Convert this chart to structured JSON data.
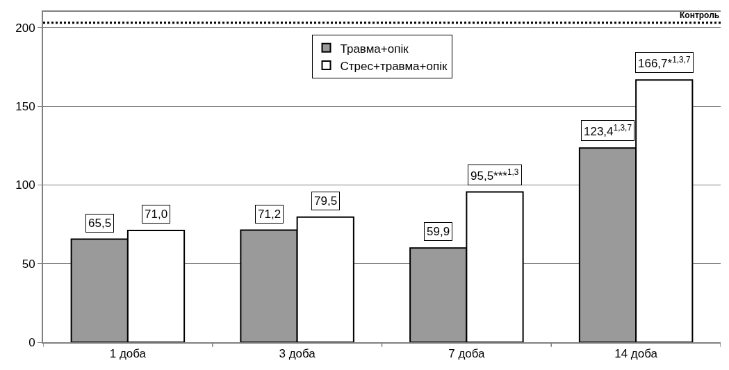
{
  "chart_data": {
    "type": "bar",
    "categories": [
      "1 доба",
      "3 доба",
      "7 доба",
      "14 доба"
    ],
    "series": [
      {
        "name": "Травма+опік",
        "color": "#9a9a9a",
        "values": [
          65.5,
          71.2,
          59.9,
          123.4
        ],
        "value_labels": [
          "65,5",
          "71,2",
          "59,9",
          "123,4$^{1,3,7}$"
        ]
      },
      {
        "name": "Стрес+травма+опік",
        "color": "#ffffff",
        "values": [
          71.0,
          79.5,
          95.5,
          166.7
        ],
        "value_labels": [
          "71,0",
          "79,5",
          "95,5***$^{1,3}$",
          "166,7*$^{1,3,7}$"
        ]
      }
    ],
    "ylim": [
      0,
      210
    ],
    "yticks": [
      0,
      50,
      100,
      150,
      200
    ],
    "grid": "y",
    "legend": "top",
    "ref_lines": [
      {
        "axis": "y",
        "value": 203,
        "label": "Контроль",
        "line_style": "dotted",
        "color": "#000000"
      }
    ]
  }
}
